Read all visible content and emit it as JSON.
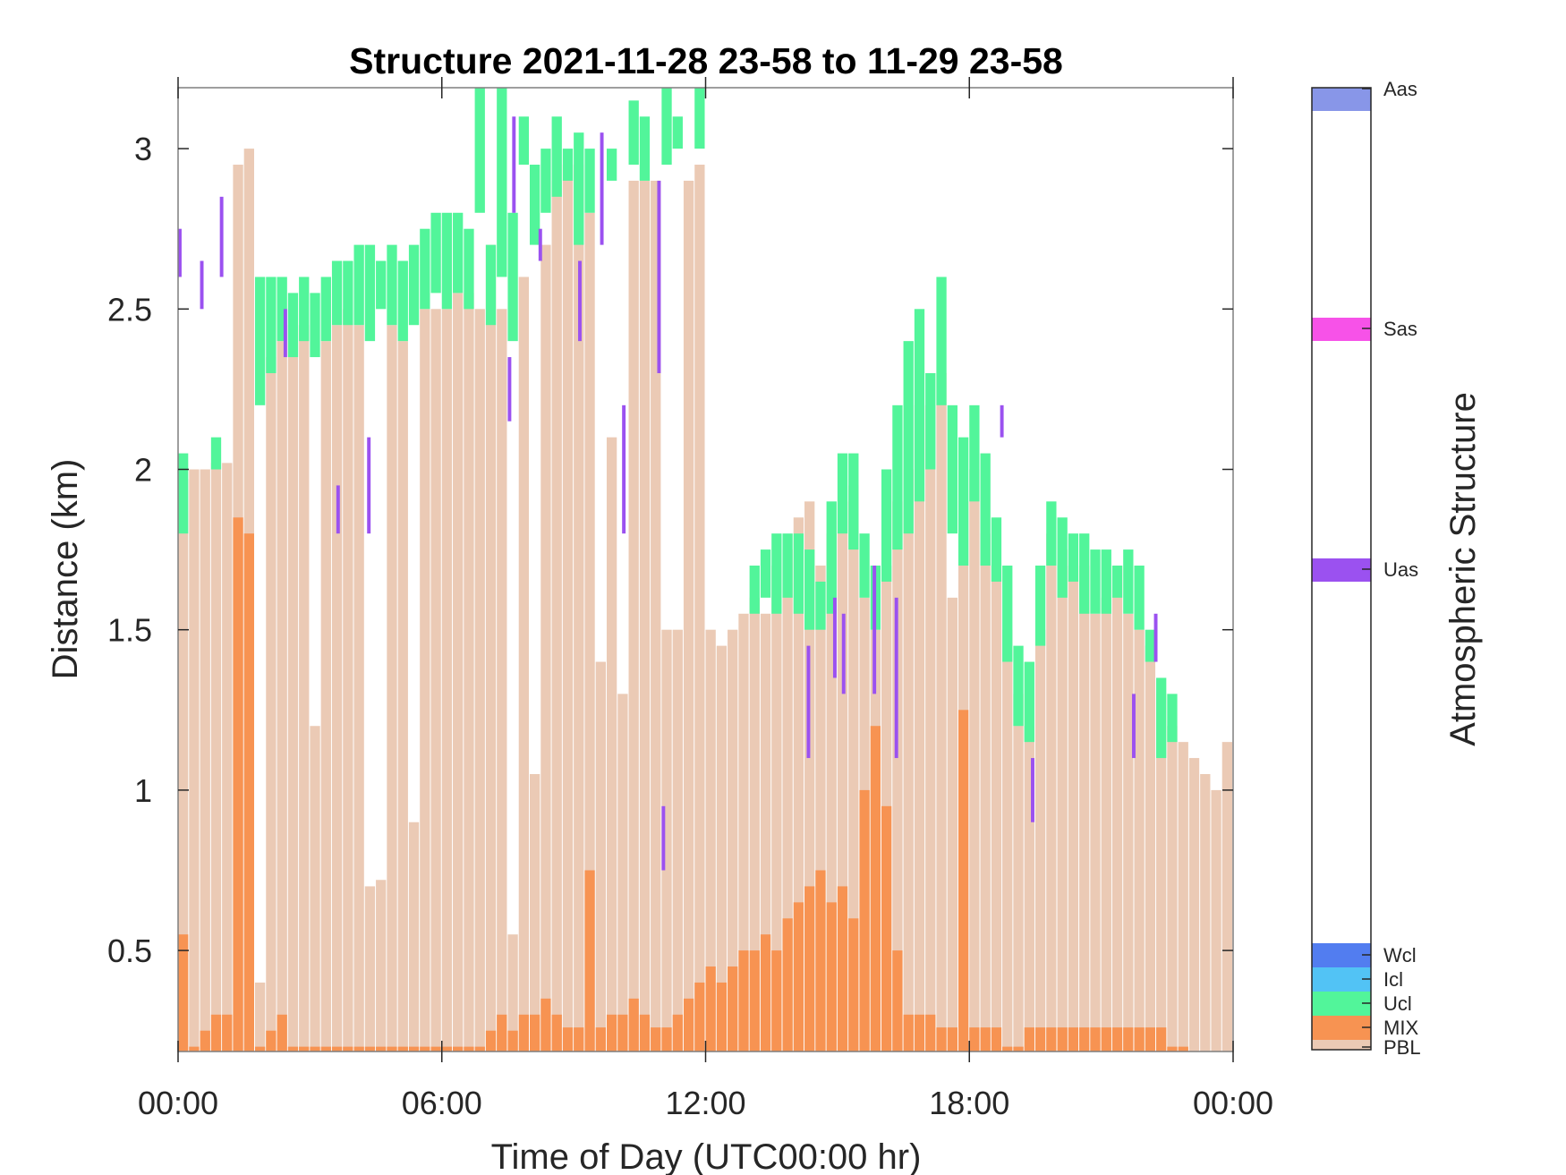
{
  "chart_data": {
    "type": "bar",
    "title": "Structure 2021-11-28 23-58 to 11-29 23-58",
    "xlabel": "Time of Day (UTC00:00 hr)",
    "ylabel": "Distance (km)",
    "xlim": [
      0,
      24
    ],
    "ylim": [
      0.185,
      3.19
    ],
    "xticks": [
      0,
      6,
      12,
      18,
      24
    ],
    "xtick_labels": [
      "00:00",
      "06:00",
      "12:00",
      "18:00",
      "00:00"
    ],
    "yticks": [
      0.5,
      1,
      1.5,
      2,
      2.5,
      3
    ],
    "ytick_labels": [
      "0.5",
      "1",
      "1.5",
      "2",
      "2.5",
      "3"
    ],
    "bin_hours": 0.25,
    "colors": {
      "PBL": "#ebcab5",
      "MIX": "#f79352",
      "Ucl": "#52f59a",
      "Uas": "#9b51f0"
    },
    "PBL_top_km": [
      1.97,
      2.0,
      2.0,
      2.02,
      2.02,
      2.95,
      3.0,
      0.4,
      2.35,
      2.4,
      2.45,
      2.45,
      1.2,
      2.4,
      2.45,
      2.5,
      2.45,
      0.7,
      0.72,
      2.45,
      2.4,
      0.9,
      2.5,
      2.5,
      2.5,
      2.55,
      2.55,
      2.5,
      2.7,
      2.5,
      0.55,
      2.6,
      1.05,
      2.7,
      2.9,
      2.95,
      2.95,
      2.8,
      1.4,
      2.1,
      1.3,
      2.9,
      2.9,
      2.9,
      1.5,
      1.5,
      2.9,
      2.95,
      1.5,
      1.45,
      1.5,
      1.55,
      1.6,
      1.55,
      1.7,
      1.75,
      1.85,
      1.9,
      1.7,
      1.8,
      1.9,
      1.95,
      1.6,
      1.5,
      1.7,
      1.9,
      2.0,
      2.2,
      2.2,
      2.3,
      1.6,
      1.9,
      2.0,
      1.8,
      1.7,
      1.5,
      1.3,
      1.2,
      1.5,
      1.8,
      1.75,
      1.7,
      1.7,
      1.55,
      1.6,
      1.7,
      1.55,
      1.5,
      1.45,
      1.3,
      1.2,
      1.15,
      1.1,
      1.05,
      1.0,
      1.15
    ],
    "MIX_top_km": [
      0.55,
      0.2,
      0.25,
      0.3,
      0.3,
      1.85,
      1.8,
      0.2,
      0.25,
      0.3,
      0.2,
      0.2,
      0.2,
      0.2,
      0.2,
      0.2,
      0.2,
      0.2,
      0.2,
      0.2,
      0.2,
      0.2,
      0.2,
      0.2,
      0.2,
      0.2,
      0.2,
      0.2,
      0.25,
      0.3,
      0.25,
      0.3,
      0.3,
      0.35,
      0.3,
      0.26,
      0.26,
      0.75,
      0.26,
      0.3,
      0.3,
      0.35,
      0.3,
      0.26,
      0.26,
      0.3,
      0.35,
      0.4,
      0.45,
      0.4,
      0.45,
      0.5,
      0.5,
      0.55,
      0.5,
      0.6,
      0.65,
      0.7,
      0.75,
      0.65,
      0.7,
      0.6,
      1.0,
      1.2,
      0.95,
      0.5,
      0.3,
      0.3,
      0.3,
      0.26,
      0.26,
      1.25,
      0.26,
      0.26,
      0.26,
      0.2,
      0.2,
      0.26,
      0.26,
      0.26,
      0.26,
      0.26,
      0.26,
      0.26,
      0.26,
      0.26,
      0.26,
      0.26,
      0.26,
      0.26,
      0.2,
      0.2,
      0.185,
      0.185,
      0.185,
      0.185
    ],
    "Ucl_layers_km": [
      [
        1.8,
        2.05
      ],
      null,
      null,
      [
        2.0,
        2.1
      ],
      null,
      null,
      null,
      [
        2.2,
        2.6
      ],
      [
        2.3,
        2.6
      ],
      [
        2.4,
        2.6
      ],
      [
        2.35,
        2.55
      ],
      [
        2.4,
        2.6
      ],
      [
        2.35,
        2.55
      ],
      [
        2.4,
        2.6
      ],
      [
        2.45,
        2.65
      ],
      [
        2.45,
        2.65
      ],
      [
        2.45,
        2.7
      ],
      [
        2.4,
        2.7
      ],
      [
        2.5,
        2.65
      ],
      [
        2.45,
        2.7
      ],
      [
        2.4,
        2.65
      ],
      [
        2.45,
        2.7
      ],
      [
        2.5,
        2.75
      ],
      [
        2.55,
        2.8
      ],
      [
        2.5,
        2.8
      ],
      [
        2.55,
        2.8
      ],
      [
        2.5,
        2.75
      ],
      [
        2.8,
        3.2
      ],
      [
        2.45,
        2.7
      ],
      [
        2.6,
        3.2
      ],
      [
        2.4,
        2.8
      ],
      [
        2.95,
        3.1
      ],
      [
        2.7,
        2.95
      ],
      [
        2.8,
        3.0
      ],
      [
        2.85,
        3.1
      ],
      [
        2.9,
        3.0
      ],
      [
        2.7,
        3.05
      ],
      [
        2.8,
        3.0
      ],
      null,
      [
        2.9,
        3.0
      ],
      null,
      [
        2.95,
        3.15
      ],
      [
        2.9,
        3.1
      ],
      null,
      [
        2.95,
        3.2
      ],
      [
        3.0,
        3.1
      ],
      null,
      [
        3.0,
        3.2
      ],
      null,
      null,
      null,
      null,
      [
        1.55,
        1.7
      ],
      [
        1.6,
        1.75
      ],
      [
        1.55,
        1.8
      ],
      [
        1.6,
        1.8
      ],
      [
        1.55,
        1.8
      ],
      [
        1.5,
        1.75
      ],
      [
        1.5,
        1.65
      ],
      [
        1.55,
        1.9
      ],
      [
        1.8,
        2.05
      ],
      [
        1.75,
        2.05
      ],
      [
        1.6,
        1.8
      ],
      [
        1.5,
        1.7
      ],
      [
        1.65,
        2.0
      ],
      [
        1.75,
        2.2
      ],
      [
        1.8,
        2.4
      ],
      [
        1.9,
        2.5
      ],
      [
        2.0,
        2.3
      ],
      [
        2.2,
        2.6
      ],
      [
        1.8,
        2.2
      ],
      [
        1.7,
        2.1
      ],
      [
        1.9,
        2.2
      ],
      [
        1.7,
        2.05
      ],
      [
        1.65,
        1.85
      ],
      [
        1.4,
        1.7
      ],
      [
        1.2,
        1.45
      ],
      [
        1.15,
        1.4
      ],
      [
        1.45,
        1.7
      ],
      [
        1.7,
        1.9
      ],
      [
        1.6,
        1.85
      ],
      [
        1.65,
        1.8
      ],
      [
        1.55,
        1.8
      ],
      [
        1.55,
        1.75
      ],
      [
        1.55,
        1.75
      ],
      [
        1.6,
        1.7
      ],
      [
        1.55,
        1.75
      ],
      [
        1.5,
        1.7
      ],
      [
        1.4,
        1.5
      ],
      [
        1.1,
        1.35
      ],
      [
        1.15,
        1.3
      ],
      null,
      null,
      null,
      null,
      null
    ],
    "Uas_layers": [
      [
        0.0,
        2.6,
        2.75
      ],
      [
        0.5,
        2.5,
        2.65
      ],
      [
        0.95,
        2.6,
        2.85
      ],
      [
        2.4,
        2.35,
        2.5
      ],
      [
        3.6,
        1.8,
        1.95
      ],
      [
        4.3,
        1.8,
        2.1
      ],
      [
        7.5,
        2.15,
        2.35
      ],
      [
        7.6,
        2.8,
        3.1
      ],
      [
        8.2,
        2.65,
        2.75
      ],
      [
        9.1,
        2.4,
        2.65
      ],
      [
        9.6,
        2.7,
        3.05
      ],
      [
        10.1,
        1.8,
        2.2
      ],
      [
        10.9,
        2.3,
        2.9
      ],
      [
        11.0,
        0.75,
        0.95
      ],
      [
        14.3,
        1.1,
        1.45
      ],
      [
        14.9,
        1.35,
        1.6
      ],
      [
        15.1,
        1.3,
        1.55
      ],
      [
        15.8,
        1.3,
        1.7
      ],
      [
        16.3,
        1.1,
        1.6
      ],
      [
        18.7,
        2.1,
        2.2
      ],
      [
        19.4,
        0.9,
        1.1
      ],
      [
        21.7,
        1.1,
        1.3
      ],
      [
        22.2,
        1.4,
        1.55
      ]
    ],
    "colorbar": {
      "label": "Atmospheric Structure",
      "categories": [
        {
          "name": "Aas",
          "color": "#8896e8"
        },
        {
          "name": "Sas",
          "color": "#f752e8"
        },
        {
          "name": "Uas",
          "color": "#9b51f0"
        },
        {
          "name": "Wcl",
          "color": "#527df0"
        },
        {
          "name": "Icl",
          "color": "#52c3f5"
        },
        {
          "name": "Ucl",
          "color": "#52f59a"
        },
        {
          "name": "MIX",
          "color": "#f79352"
        },
        {
          "name": "PBL",
          "color": "#ebcab5"
        }
      ]
    }
  }
}
